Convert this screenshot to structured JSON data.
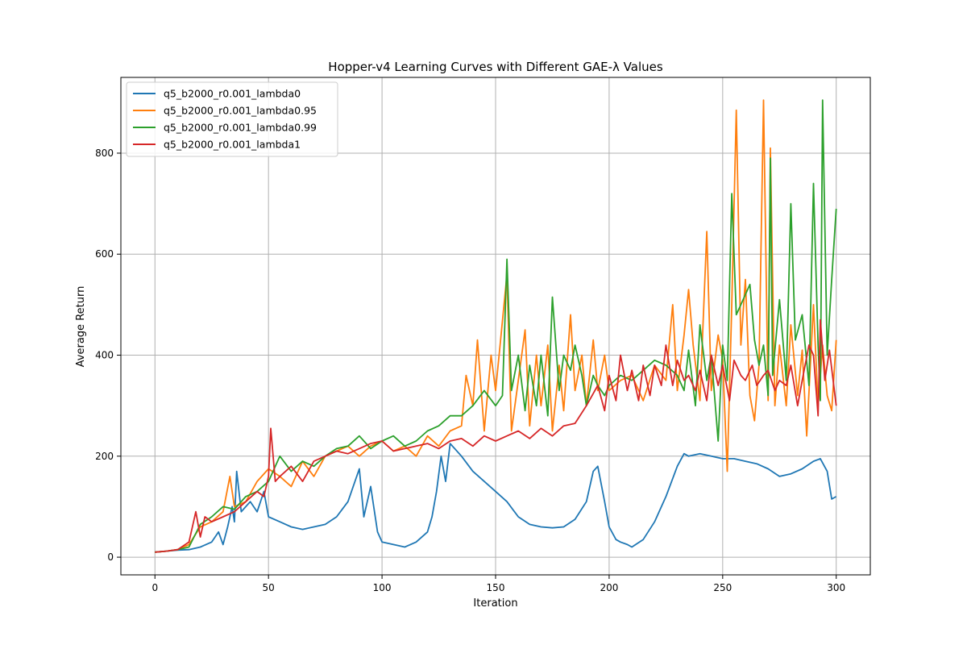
{
  "chart_data": {
    "type": "line",
    "title": "Hopper-v4 Learning Curves with Different GAE-λ Values",
    "xlabel": "Iteration",
    "ylabel": "Average Return",
    "xlim": [
      -15,
      315
    ],
    "ylim": [
      -35,
      950
    ],
    "xticks": [
      0,
      50,
      100,
      150,
      200,
      250,
      300
    ],
    "yticks": [
      0,
      200,
      400,
      600,
      800
    ],
    "grid": true,
    "legend_position": "top-left",
    "series": [
      {
        "name": "q5_b2000_r0.001_lambda0",
        "color": "#1f77b4",
        "x": [
          0,
          5,
          10,
          15,
          20,
          25,
          28,
          30,
          32,
          34,
          35,
          36,
          38,
          40,
          42,
          45,
          48,
          50,
          55,
          60,
          65,
          70,
          75,
          80,
          85,
          90,
          92,
          95,
          98,
          100,
          105,
          110,
          115,
          120,
          122,
          124,
          126,
          128,
          130,
          135,
          140,
          145,
          150,
          155,
          160,
          165,
          170,
          175,
          180,
          185,
          190,
          193,
          195,
          198,
          200,
          203,
          205,
          208,
          210,
          215,
          220,
          225,
          230,
          233,
          235,
          240,
          245,
          250,
          255,
          260,
          265,
          270,
          275,
          280,
          285,
          290,
          293,
          296,
          298,
          300
        ],
        "y": [
          10,
          12,
          14,
          15,
          20,
          30,
          50,
          25,
          60,
          100,
          70,
          170,
          90,
          100,
          110,
          90,
          130,
          80,
          70,
          60,
          55,
          60,
          65,
          80,
          110,
          175,
          80,
          140,
          50,
          30,
          25,
          20,
          30,
          50,
          80,
          130,
          200,
          150,
          225,
          200,
          170,
          150,
          130,
          110,
          80,
          65,
          60,
          58,
          60,
          75,
          110,
          170,
          180,
          110,
          60,
          35,
          30,
          25,
          20,
          35,
          70,
          120,
          180,
          205,
          200,
          205,
          200,
          195,
          195,
          190,
          185,
          175,
          160,
          165,
          175,
          190,
          195,
          170,
          115,
          120
        ]
      },
      {
        "name": "q5_b2000_r0.001_lambda0.95",
        "color": "#ff7f0e",
        "x": [
          0,
          5,
          10,
          15,
          20,
          25,
          30,
          33,
          35,
          40,
          45,
          50,
          55,
          60,
          65,
          70,
          75,
          80,
          85,
          90,
          95,
          100,
          105,
          110,
          115,
          120,
          125,
          130,
          135,
          137,
          140,
          142,
          145,
          148,
          150,
          152,
          155,
          157,
          160,
          163,
          165,
          168,
          170,
          173,
          175,
          178,
          180,
          183,
          185,
          188,
          190,
          193,
          195,
          198,
          200,
          205,
          210,
          215,
          220,
          225,
          228,
          230,
          233,
          235,
          237,
          240,
          243,
          245,
          248,
          250,
          252,
          254,
          256,
          258,
          260,
          262,
          264,
          266,
          268,
          270,
          271,
          273,
          275,
          278,
          280,
          283,
          285,
          287,
          290,
          292,
          294,
          296,
          298,
          300
        ],
        "y": [
          10,
          12,
          15,
          25,
          60,
          70,
          90,
          160,
          100,
          110,
          150,
          175,
          160,
          140,
          190,
          160,
          200,
          210,
          220,
          200,
          220,
          230,
          210,
          220,
          200,
          240,
          220,
          250,
          260,
          360,
          300,
          430,
          250,
          400,
          330,
          420,
          560,
          250,
          350,
          450,
          260,
          400,
          300,
          420,
          250,
          380,
          290,
          480,
          330,
          400,
          300,
          430,
          330,
          400,
          330,
          350,
          360,
          310,
          380,
          350,
          500,
          330,
          440,
          530,
          420,
          310,
          645,
          330,
          440,
          390,
          170,
          500,
          885,
          420,
          550,
          320,
          270,
          380,
          905,
          310,
          810,
          300,
          420,
          300,
          460,
          320,
          410,
          240,
          500,
          300,
          420,
          320,
          290,
          430
        ]
      },
      {
        "name": "q5_b2000_r0.001_lambda0.99",
        "color": "#2ca02c",
        "x": [
          0,
          5,
          10,
          15,
          20,
          25,
          30,
          35,
          40,
          45,
          50,
          55,
          60,
          65,
          70,
          75,
          80,
          85,
          90,
          95,
          100,
          105,
          110,
          115,
          120,
          125,
          130,
          135,
          140,
          145,
          150,
          153,
          155,
          157,
          160,
          163,
          165,
          168,
          170,
          173,
          175,
          178,
          180,
          183,
          185,
          188,
          190,
          193,
          195,
          198,
          200,
          205,
          210,
          215,
          220,
          225,
          230,
          233,
          235,
          238,
          240,
          243,
          245,
          248,
          250,
          252,
          254,
          256,
          258,
          260,
          262,
          264,
          266,
          268,
          270,
          271,
          272,
          275,
          278,
          280,
          282,
          285,
          288,
          290,
          292,
          293,
          294,
          296,
          298,
          300
        ],
        "y": [
          10,
          12,
          15,
          20,
          65,
          80,
          100,
          95,
          120,
          130,
          150,
          200,
          170,
          190,
          180,
          200,
          215,
          220,
          240,
          215,
          230,
          240,
          220,
          230,
          250,
          260,
          280,
          280,
          300,
          330,
          300,
          320,
          590,
          330,
          400,
          290,
          380,
          300,
          400,
          280,
          515,
          330,
          400,
          370,
          420,
          360,
          300,
          360,
          340,
          320,
          340,
          360,
          350,
          370,
          390,
          380,
          360,
          330,
          410,
          300,
          460,
          350,
          400,
          230,
          420,
          350,
          720,
          480,
          500,
          520,
          540,
          430,
          380,
          420,
          320,
          790,
          360,
          510,
          350,
          700,
          430,
          480,
          340,
          740,
          420,
          310,
          905,
          400,
          550,
          690
        ]
      },
      {
        "name": "q5_b2000_r0.001_lambda1",
        "color": "#d62728",
        "x": [
          0,
          5,
          10,
          15,
          18,
          20,
          22,
          25,
          30,
          35,
          40,
          45,
          48,
          50,
          51,
          53,
          55,
          60,
          65,
          70,
          75,
          80,
          85,
          90,
          95,
          100,
          105,
          110,
          115,
          120,
          125,
          130,
          135,
          140,
          145,
          150,
          155,
          160,
          165,
          170,
          175,
          180,
          185,
          190,
          195,
          198,
          200,
          203,
          205,
          208,
          210,
          213,
          215,
          218,
          220,
          223,
          225,
          228,
          230,
          233,
          235,
          238,
          240,
          243,
          245,
          248,
          250,
          253,
          255,
          258,
          260,
          263,
          265,
          268,
          270,
          273,
          275,
          278,
          280,
          283,
          285,
          288,
          290,
          292,
          293,
          295,
          297,
          300
        ],
        "y": [
          10,
          12,
          15,
          30,
          90,
          40,
          80,
          70,
          80,
          90,
          110,
          130,
          120,
          160,
          255,
          150,
          160,
          180,
          150,
          190,
          200,
          210,
          205,
          215,
          225,
          230,
          210,
          215,
          220,
          225,
          215,
          230,
          235,
          220,
          240,
          230,
          240,
          250,
          235,
          255,
          240,
          260,
          265,
          300,
          340,
          290,
          360,
          310,
          400,
          330,
          370,
          310,
          380,
          320,
          380,
          340,
          420,
          340,
          390,
          350,
          360,
          330,
          370,
          310,
          400,
          340,
          380,
          310,
          390,
          360,
          350,
          380,
          340,
          360,
          370,
          330,
          350,
          340,
          380,
          300,
          350,
          420,
          400,
          280,
          470,
          350,
          410,
          300
        ]
      }
    ]
  }
}
